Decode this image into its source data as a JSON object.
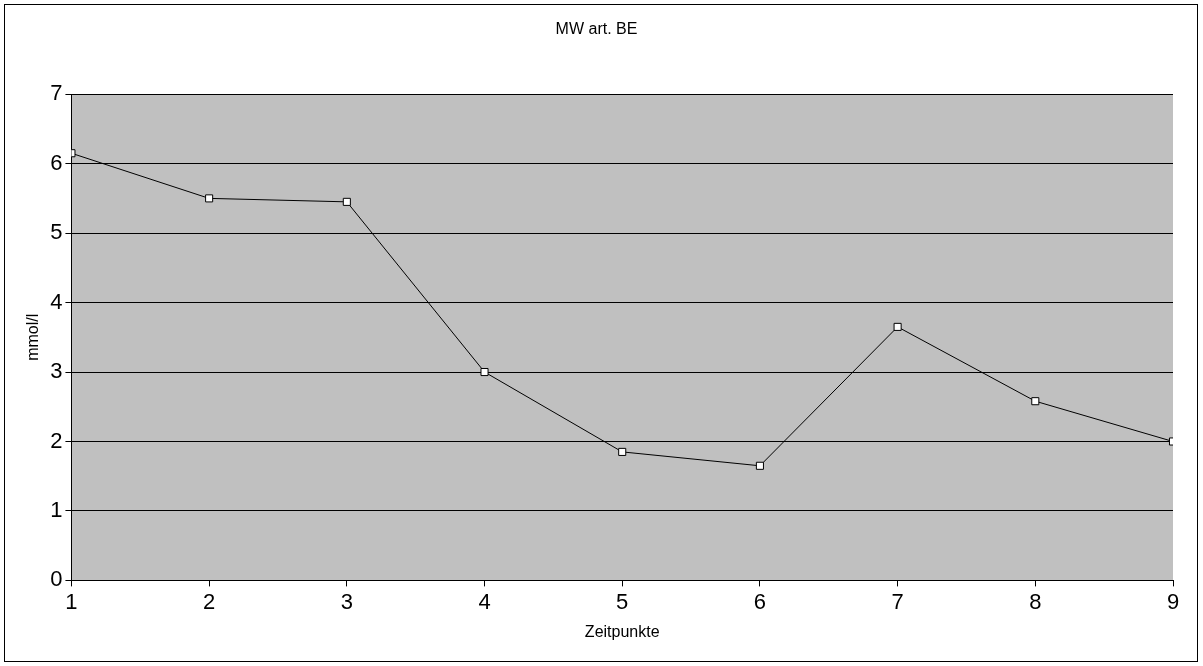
{
  "chart_data": {
    "type": "line",
    "title": "MW art. BE",
    "xlabel": "Zeitpunkte",
    "ylabel": "mmol/l",
    "x": [
      1,
      2,
      3,
      4,
      5,
      6,
      7,
      8,
      9
    ],
    "series": [
      {
        "color": "#000000",
        "values": [
          6.15,
          5.5,
          5.45,
          3.0,
          1.85,
          1.65,
          3.65,
          2.58,
          2.0
        ]
      }
    ],
    "xlim": [
      1,
      9
    ],
    "xticks": [
      1,
      2,
      3,
      4,
      5,
      6,
      7,
      8,
      9
    ],
    "ylim": [
      0,
      7
    ],
    "yticks": [
      0,
      1,
      2,
      3,
      4,
      5,
      6,
      7
    ],
    "grid": "y",
    "legend": false,
    "marker": "square",
    "line_style": "solid"
  }
}
